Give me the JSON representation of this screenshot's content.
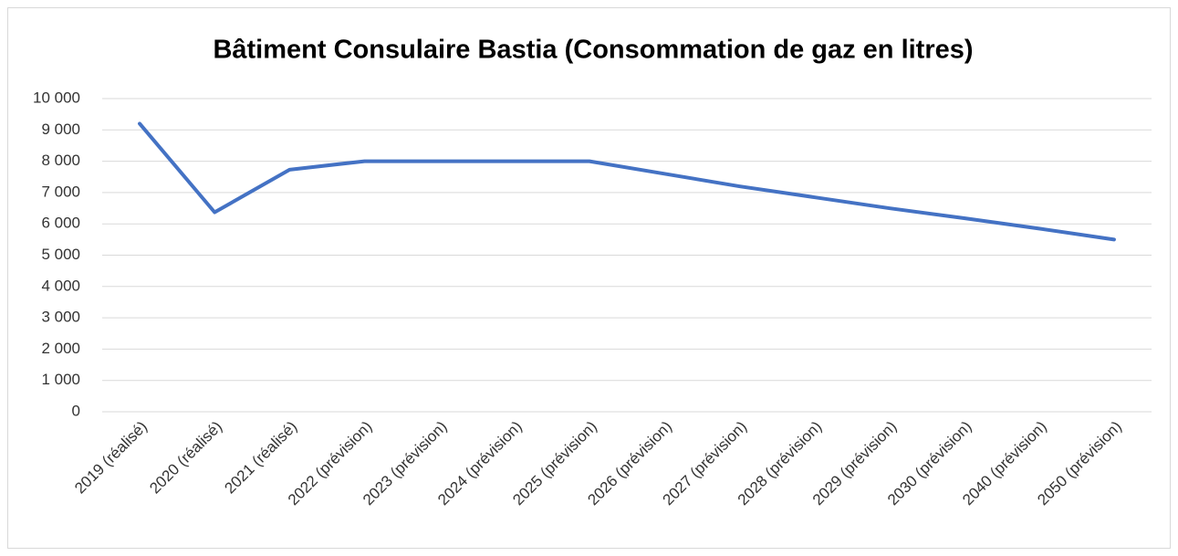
{
  "chart_data": {
    "type": "line",
    "title": "Bâtiment Consulaire Bastia (Consommation de gaz en litres)",
    "categories": [
      "2019 (réalisé)",
      "2020 (réalisé)",
      "2021 (réalisé)",
      "2022 (prévision)",
      "2023 (prévision)",
      "2024 (prévision)",
      "2025 (prévision)",
      "2026 (prévision)",
      "2027 (prévision)",
      "2028 (prévision)",
      "2029 (prévision)",
      "2030 (prévision)",
      "2040 (prévision)",
      "2050 (prévision)"
    ],
    "values": [
      9200,
      6370,
      7730,
      8000,
      8000,
      8000,
      8000,
      7600,
      7200,
      6850,
      6500,
      6180,
      5850,
      5500
    ],
    "color": "#4472c4",
    "ylim": [
      0,
      10000
    ],
    "yticks": [
      0,
      {
        "value": 1000,
        "label": "1 000"
      },
      {
        "value": 2000,
        "label": "2 000"
      },
      {
        "value": 3000,
        "label": "3 000"
      },
      {
        "value": 4000,
        "label": "4 000"
      },
      {
        "value": 5000,
        "label": "5 000"
      },
      {
        "value": 6000,
        "label": "6 000"
      },
      {
        "value": 7000,
        "label": "7 000"
      },
      {
        "value": 8000,
        "label": "8 000"
      },
      {
        "value": 9000,
        "label": "9 000"
      },
      {
        "value": 10000,
        "label": "10 000"
      }
    ],
    "grid": true
  }
}
